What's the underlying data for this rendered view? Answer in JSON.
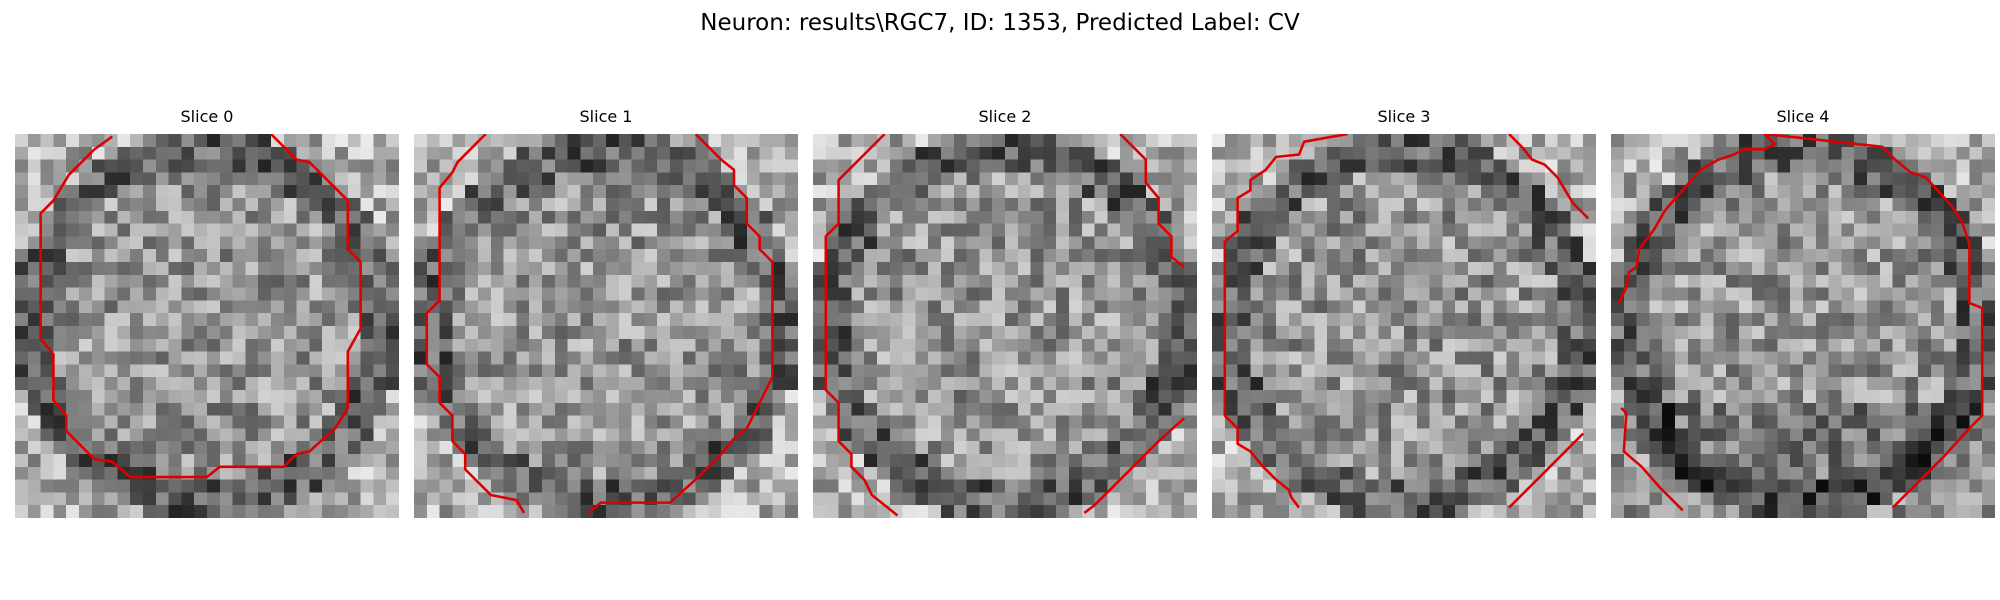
{
  "figure": {
    "title": "Neuron: results\\RGC7, ID: 1353, Predicted Label: CV",
    "contour_color": "#dd0000"
  },
  "slices": [
    {
      "title": "Slice 0"
    },
    {
      "title": "Slice 1"
    },
    {
      "title": "Slice 2"
    },
    {
      "title": "Slice 3"
    },
    {
      "title": "Slice 4"
    }
  ]
}
